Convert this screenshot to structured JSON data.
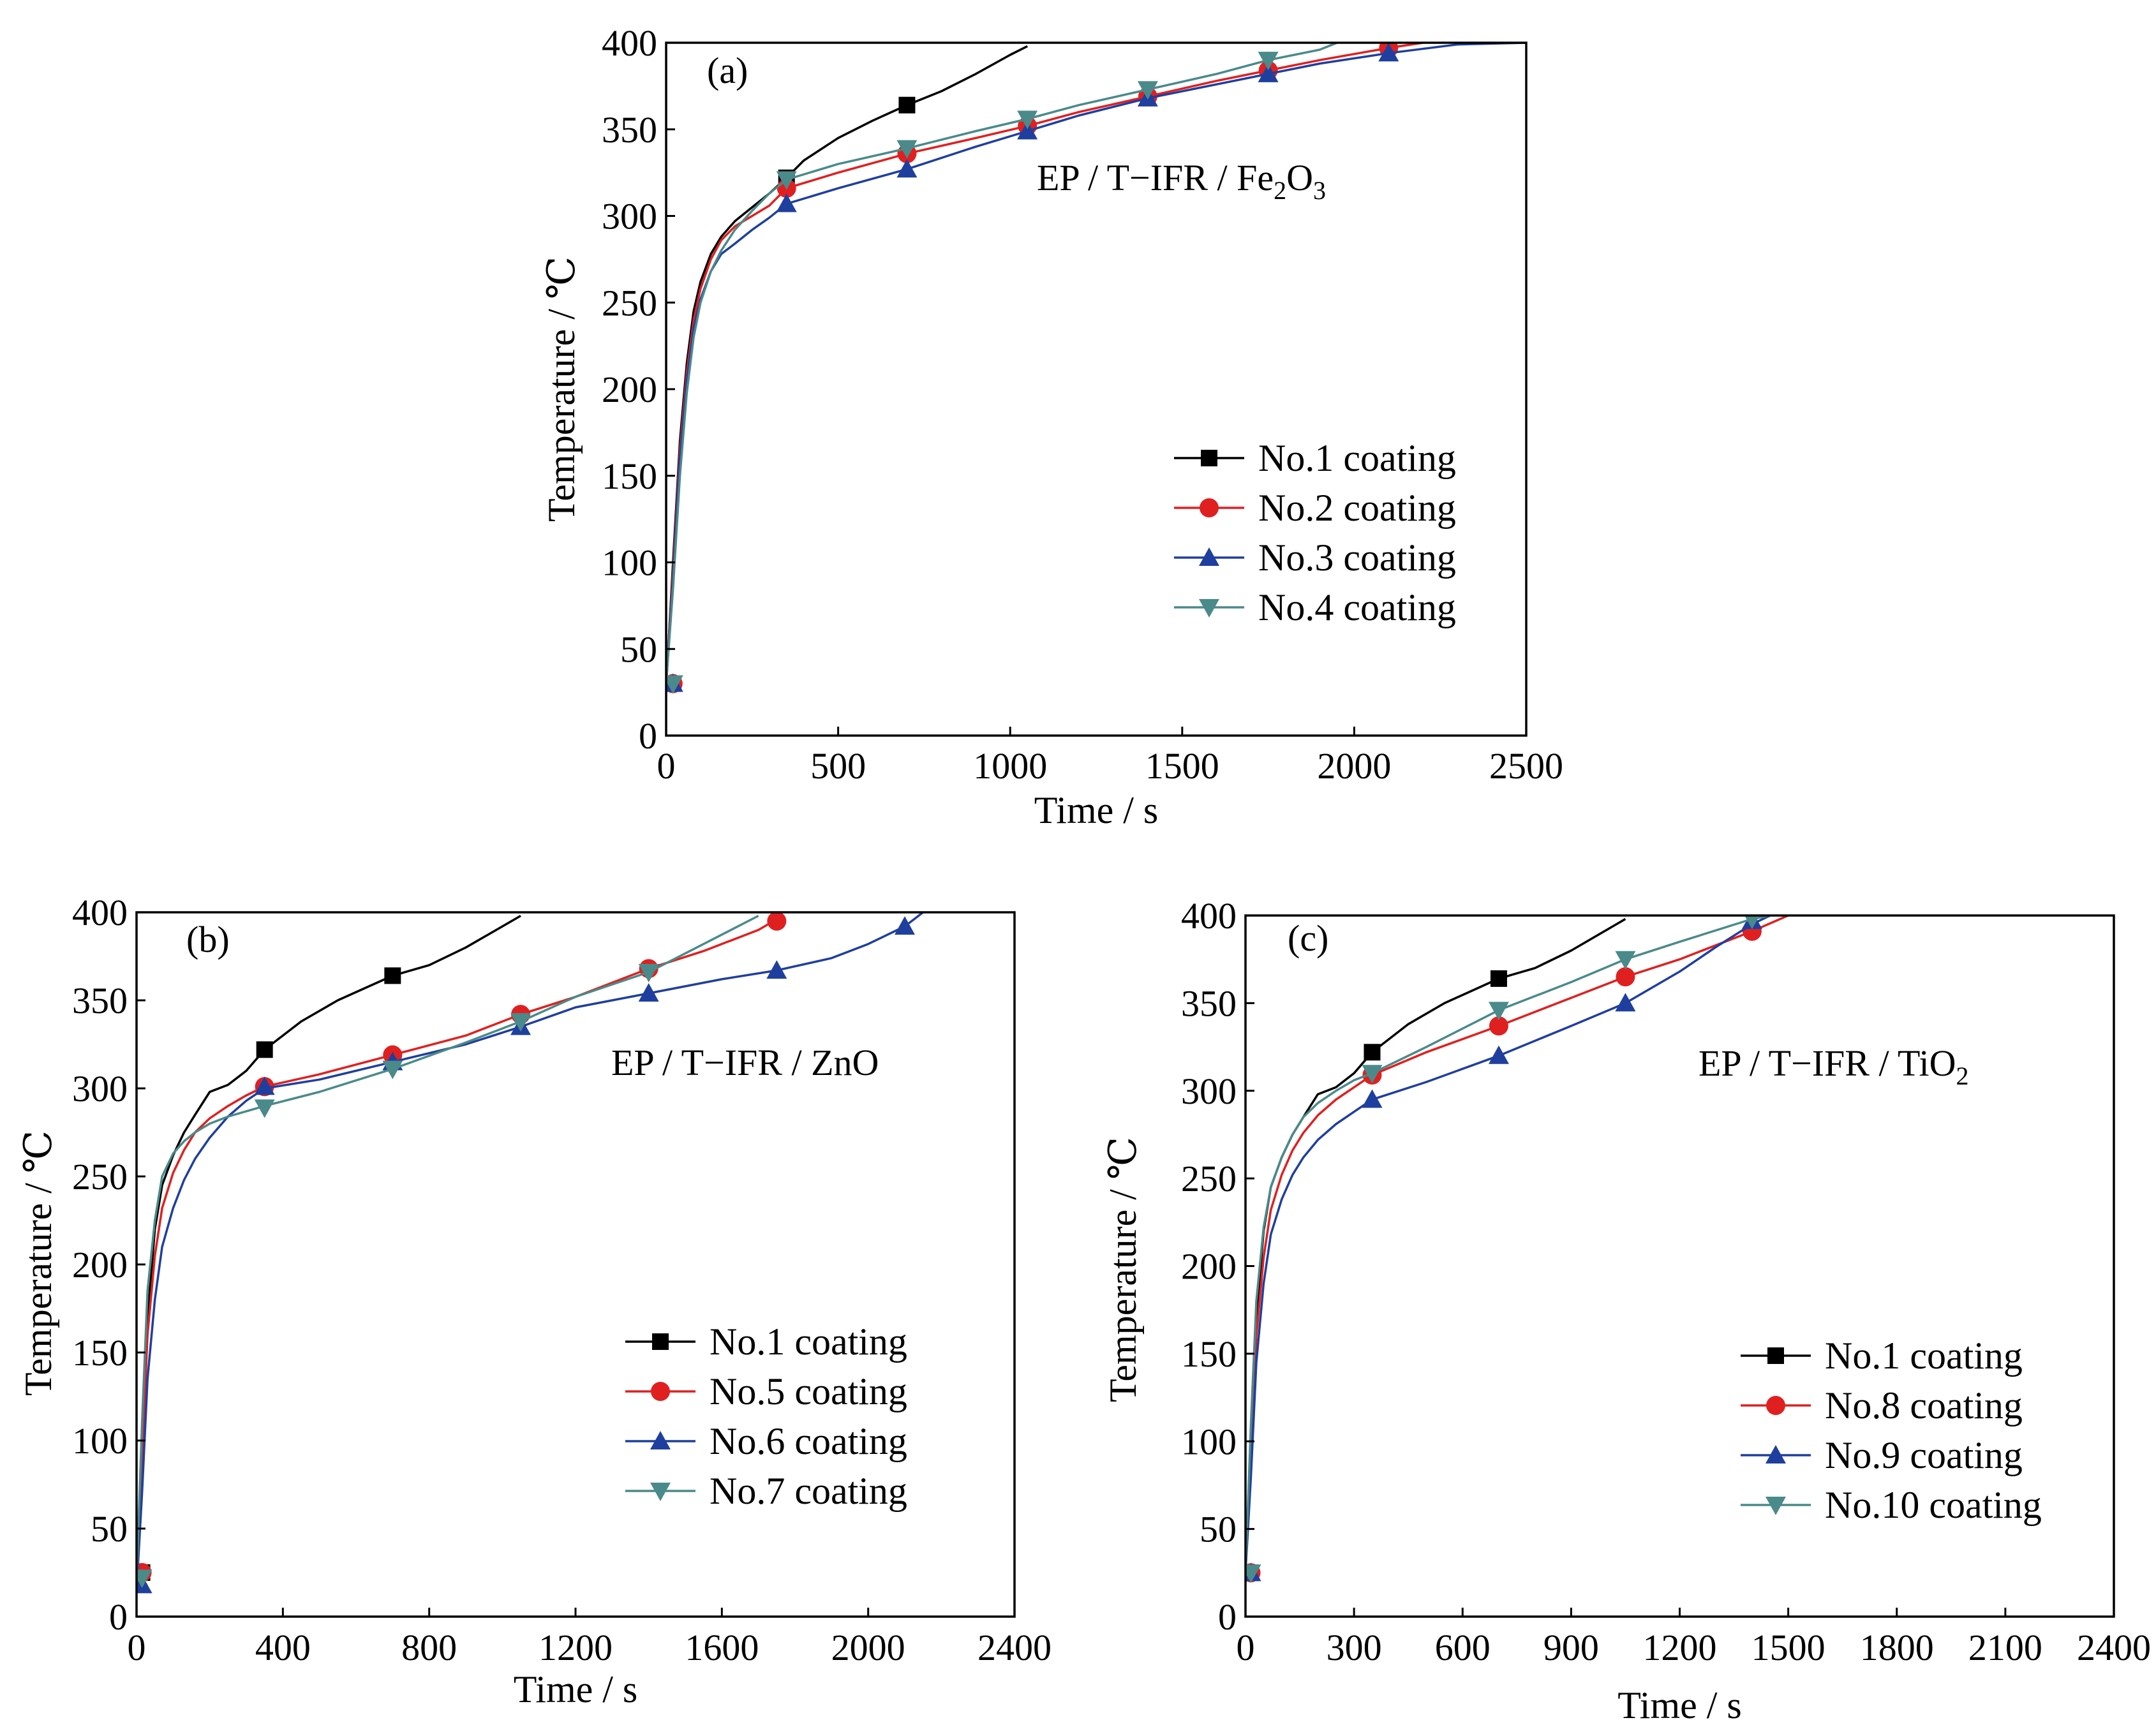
{
  "chart_data": [
    {
      "type": "line",
      "panel_label": "(a)",
      "annotation": "EP / T−IFR / Fe",
      "annotation_sub1": "2",
      "annotation_mid": "O",
      "annotation_sub2": "3",
      "xlabel": "Time / s",
      "ylabel": "Temperature / ℃",
      "xlim": [
        0,
        2500
      ],
      "ylim": [
        0,
        400
      ],
      "xticks": [
        0,
        500,
        1000,
        1500,
        2000,
        2500
      ],
      "xtick_labels": [
        "0",
        "500",
        "1000",
        "1500",
        "2000",
        "2500"
      ],
      "yticks": [
        0,
        50,
        100,
        150,
        200,
        250,
        300,
        350,
        400
      ],
      "ytick_labels": [
        "0",
        "50",
        "100",
        "150",
        "200",
        "250",
        "300",
        "350",
        "400"
      ],
      "legend_position": "lower-right",
      "series": [
        {
          "name": "No.1 coating",
          "color": "#000000",
          "marker": "square",
          "x": [
            0,
            20,
            40,
            60,
            80,
            100,
            130,
            160,
            200,
            250,
            300,
            350,
            400,
            500,
            600,
            700,
            800,
            900,
            1000,
            1050
          ],
          "y": [
            28,
            100,
            170,
            215,
            245,
            262,
            278,
            288,
            297,
            305,
            313,
            322,
            332,
            345,
            355,
            364,
            372,
            382,
            393,
            398
          ],
          "mx": [
            20,
            350,
            700
          ],
          "my": [
            30,
            322,
            364
          ]
        },
        {
          "name": "No.2 coating",
          "color": "#e02020",
          "marker": "circle",
          "x": [
            0,
            20,
            40,
            60,
            80,
            100,
            130,
            160,
            200,
            250,
            300,
            350,
            500,
            700,
            900,
            1050,
            1200,
            1400,
            1600,
            1750,
            1900,
            2100,
            2200
          ],
          "y": [
            30,
            95,
            165,
            210,
            240,
            258,
            275,
            286,
            294,
            300,
            306,
            316,
            325,
            336,
            345,
            352,
            360,
            369,
            378,
            384,
            390,
            397,
            400
          ],
          "mx": [
            20,
            350,
            700,
            1050,
            1400,
            1750,
            2100
          ],
          "my": [
            30,
            316,
            336,
            352,
            369,
            384,
            397
          ]
        },
        {
          "name": "No.3 coating",
          "color": "#1f3f9f",
          "marker": "triangle-up",
          "x": [
            0,
            20,
            40,
            60,
            80,
            100,
            130,
            160,
            200,
            250,
            300,
            350,
            500,
            700,
            900,
            1050,
            1200,
            1400,
            1600,
            1750,
            1900,
            2100,
            2300,
            2500
          ],
          "y": [
            30,
            90,
            160,
            205,
            235,
            252,
            268,
            278,
            284,
            292,
            299,
            307,
            316,
            327,
            340,
            349,
            358,
            368,
            376,
            382,
            388,
            394,
            399,
            400
          ],
          "mx": [
            20,
            350,
            700,
            1050,
            1400,
            1750,
            2100
          ],
          "my": [
            30,
            307,
            327,
            349,
            368,
            382,
            394
          ]
        },
        {
          "name": "No.4 coating",
          "color": "#4a8a8a",
          "marker": "triangle-down",
          "x": [
            0,
            20,
            40,
            60,
            80,
            100,
            130,
            160,
            200,
            250,
            300,
            350,
            500,
            700,
            900,
            1050,
            1200,
            1400,
            1600,
            1750,
            1900,
            1950
          ],
          "y": [
            30,
            85,
            150,
            198,
            230,
            250,
            268,
            280,
            292,
            303,
            313,
            321,
            330,
            339,
            349,
            356,
            364,
            373,
            382,
            390,
            396,
            400
          ],
          "mx": [
            20,
            350,
            700,
            1050,
            1400,
            1750
          ],
          "my": [
            30,
            321,
            339,
            356,
            373,
            390
          ]
        }
      ]
    },
    {
      "type": "line",
      "panel_label": "(b)",
      "annotation": "EP / T−IFR / ZnO",
      "xlabel": "Time / s",
      "ylabel": "Temperature / ℃",
      "xlim": [
        0,
        2400
      ],
      "ylim": [
        0,
        400
      ],
      "xticks": [
        0,
        400,
        800,
        1200,
        1600,
        2000,
        2400
      ],
      "xtick_labels": [
        "0",
        "400",
        "800",
        "1200",
        "1600",
        "2000",
        "2400"
      ],
      "yticks": [
        0,
        50,
        100,
        150,
        200,
        250,
        300,
        350,
        400
      ],
      "ytick_labels": [
        "0",
        "50",
        "100",
        "150",
        "200",
        "250",
        "300",
        "350",
        "400"
      ],
      "legend_position": "lower-right",
      "series": [
        {
          "name": "No.1 coating",
          "color": "#000000",
          "marker": "square",
          "x": [
            0,
            15,
            30,
            50,
            70,
            100,
            130,
            160,
            200,
            250,
            300,
            350,
            450,
            550,
            700,
            800,
            900,
            1000,
            1050
          ],
          "y": [
            25,
            100,
            170,
            220,
            245,
            262,
            275,
            285,
            298,
            302,
            310,
            322,
            338,
            350,
            364,
            370,
            380,
            392,
            398
          ],
          "mx": [
            15,
            350,
            700
          ],
          "my": [
            25,
            322,
            364
          ]
        },
        {
          "name": "No.5 coating",
          "color": "#e02020",
          "marker": "circle",
          "x": [
            0,
            15,
            30,
            50,
            70,
            100,
            130,
            160,
            200,
            250,
            300,
            350,
            500,
            700,
            900,
            1050,
            1200,
            1400,
            1550,
            1700,
            1750
          ],
          "y": [
            28,
            90,
            160,
            205,
            232,
            252,
            265,
            275,
            283,
            290,
            296,
            301,
            308,
            319,
            330,
            342,
            352,
            368,
            378,
            390,
            396
          ],
          "mx": [
            15,
            350,
            700,
            1050,
            1400,
            1750
          ],
          "my": [
            25,
            301,
            319,
            342,
            368,
            395
          ]
        },
        {
          "name": "No.6 coating",
          "color": "#1f3f9f",
          "marker": "triangle-up",
          "x": [
            0,
            15,
            30,
            50,
            70,
            100,
            130,
            160,
            200,
            250,
            300,
            350,
            500,
            700,
            900,
            1050,
            1200,
            1400,
            1600,
            1750,
            1900,
            2000,
            2100,
            2150
          ],
          "y": [
            15,
            70,
            135,
            180,
            210,
            232,
            248,
            260,
            272,
            284,
            293,
            300,
            305,
            315,
            325,
            335,
            346,
            354,
            362,
            367,
            374,
            382,
            392,
            400
          ],
          "mx": [
            15,
            350,
            700,
            1050,
            1400,
            1750,
            2100
          ],
          "my": [
            18,
            301,
            315,
            335,
            354,
            367,
            392
          ]
        },
        {
          "name": "No.7 coating",
          "color": "#4a8a8a",
          "marker": "triangle-down",
          "x": [
            0,
            15,
            30,
            50,
            70,
            100,
            130,
            160,
            200,
            250,
            300,
            350,
            500,
            700,
            900,
            1050,
            1200,
            1400,
            1550,
            1700
          ],
          "y": [
            20,
            110,
            185,
            225,
            250,
            263,
            270,
            275,
            280,
            284,
            287,
            290,
            298,
            311,
            326,
            338,
            352,
            366,
            382,
            398
          ],
          "mx": [
            15,
            350,
            700,
            1050,
            1400
          ],
          "my": [
            22,
            289,
            311,
            338,
            366
          ]
        }
      ]
    },
    {
      "type": "line",
      "panel_label": "(c)",
      "annotation": "EP / T−IFR / TiO",
      "annotation_sub1": "2",
      "xlabel": "Time / s",
      "ylabel": "Temperature / ℃",
      "xlim": [
        0,
        2400
      ],
      "ylim": [
        0,
        400
      ],
      "xticks": [
        0,
        300,
        600,
        900,
        1200,
        1500,
        1800,
        2100,
        2400
      ],
      "xtick_labels": [
        "0",
        "300",
        "600",
        "900",
        "1200",
        "1500",
        "1800",
        "2100",
        "2400"
      ],
      "yticks": [
        0,
        50,
        100,
        150,
        200,
        250,
        300,
        350,
        400
      ],
      "ytick_labels": [
        "0",
        "50",
        "100",
        "150",
        "200",
        "250",
        "300",
        "350",
        "400"
      ],
      "legend_position": "lower-right",
      "series": [
        {
          "name": "No.1 coating",
          "color": "#000000",
          "marker": "square",
          "x": [
            0,
            15,
            30,
            50,
            70,
            100,
            130,
            160,
            200,
            250,
            300,
            350,
            450,
            550,
            700,
            800,
            900,
            1000,
            1050
          ],
          "y": [
            25,
            100,
            170,
            220,
            245,
            262,
            275,
            285,
            298,
            302,
            310,
            322,
            338,
            350,
            364,
            370,
            380,
            392,
            398
          ],
          "mx": [
            15,
            350,
            700
          ],
          "my": [
            25,
            322,
            364
          ]
        },
        {
          "name": "No.8 coating",
          "color": "#e02020",
          "marker": "circle",
          "x": [
            0,
            15,
            30,
            50,
            70,
            100,
            130,
            160,
            200,
            250,
            300,
            350,
            500,
            700,
            900,
            1050,
            1200,
            1400,
            1500
          ],
          "y": [
            25,
            95,
            160,
            205,
            232,
            252,
            266,
            276,
            286,
            295,
            302,
            309,
            322,
            337,
            353,
            365,
            375,
            391,
            400
          ],
          "mx": [
            15,
            350,
            700,
            1050,
            1400
          ],
          "my": [
            25,
            309,
            337,
            365,
            391
          ]
        },
        {
          "name": "No.9 coating",
          "color": "#1f3f9f",
          "marker": "triangle-up",
          "x": [
            0,
            15,
            30,
            50,
            70,
            100,
            130,
            160,
            200,
            250,
            300,
            350,
            500,
            700,
            900,
            1050,
            1200,
            1300,
            1400,
            1450
          ],
          "y": [
            25,
            80,
            145,
            190,
            218,
            238,
            252,
            262,
            272,
            281,
            288,
            295,
            305,
            320,
            337,
            350,
            368,
            382,
            395,
            400
          ],
          "mx": [
            15,
            350,
            700,
            1050,
            1400
          ],
          "my": [
            25,
            295,
            320,
            350,
            397
          ]
        },
        {
          "name": "No.10 coating",
          "color": "#4a8a8a",
          "marker": "triangle-down",
          "x": [
            0,
            15,
            30,
            50,
            70,
            100,
            130,
            160,
            200,
            250,
            300,
            350,
            500,
            700,
            900,
            1050,
            1200,
            1400,
            1450
          ],
          "y": [
            25,
            110,
            180,
            222,
            245,
            262,
            275,
            285,
            293,
            300,
            306,
            310,
            325,
            346,
            362,
            375,
            385,
            398,
            400
          ],
          "mx": [
            15,
            350,
            700,
            1050,
            1400
          ],
          "my": [
            25,
            310,
            346,
            375,
            398
          ]
        }
      ]
    }
  ]
}
